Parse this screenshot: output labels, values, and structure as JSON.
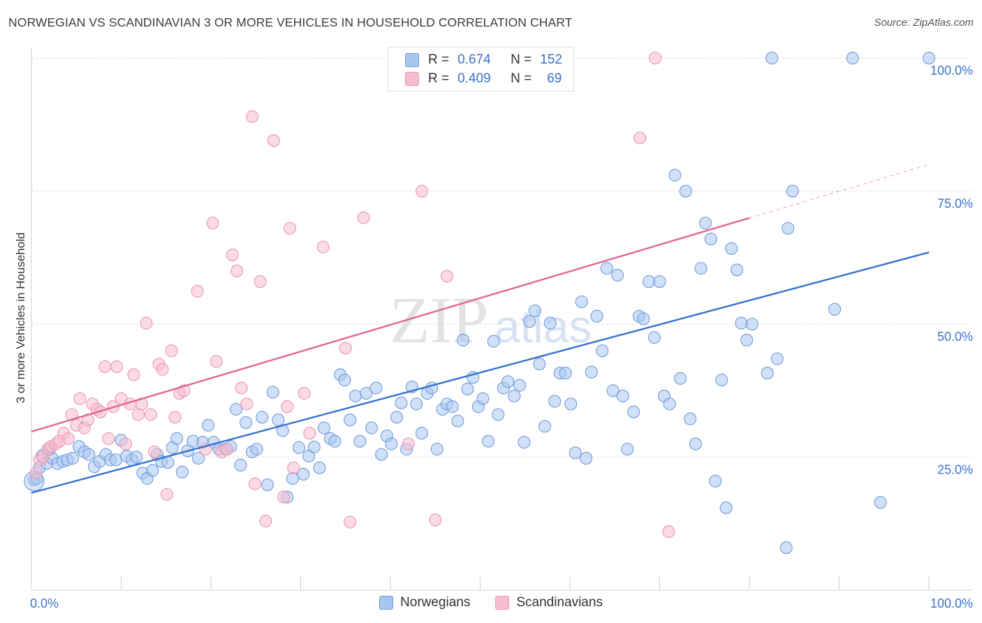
{
  "header": {
    "title": "NORWEGIAN VS SCANDINAVIAN 3 OR MORE VEHICLES IN HOUSEHOLD CORRELATION CHART",
    "source": "Source: ZipAtlas.com"
  },
  "watermark": {
    "zip": "ZIP",
    "atlas": "atlas"
  },
  "legend_box": {
    "rows": [
      {
        "r_label": "R =",
        "r_value": "0.674",
        "n_label": "N =",
        "n_value": "152"
      },
      {
        "r_label": "R =",
        "r_value": "0.409",
        "n_label": "N =",
        "n_value": "69"
      }
    ]
  },
  "colors": {
    "norwegians_fill": "#a9c6f0",
    "norwegians_stroke": "#6f9bdc",
    "norwegians_line": "#3472d0",
    "scandinavians_fill": "#f6bdd0",
    "scandinavians_stroke": "#ee95b2",
    "scandinavians_line": "#e2668f",
    "tick_label": "#3a72c9",
    "grid": "#dddddd"
  },
  "chart_data": {
    "type": "scatter",
    "title": "NORWEGIAN VS SCANDINAVIAN 3 OR MORE VEHICLES IN HOUSEHOLD CORRELATION CHART",
    "xlabel": "",
    "ylabel": "3 or more Vehicles in Household",
    "xlim": [
      0,
      100
    ],
    "ylim": [
      0,
      102
    ],
    "x_tick_labels": [
      "0.0%",
      "100.0%"
    ],
    "y_ticks": [
      {
        "value": 25,
        "label": "25.0%"
      },
      {
        "value": 50,
        "label": "50.0%"
      },
      {
        "value": 75,
        "label": "75.0%"
      },
      {
        "value": 100,
        "label": "100.0%"
      }
    ],
    "grid": true,
    "legend_position": "bottom",
    "series": [
      {
        "name": "Norwegians",
        "r": 0.674,
        "n": 152,
        "trend": {
          "x0": 0,
          "y0": 18.3,
          "x1": 100,
          "y1": 63.5,
          "dash_from": null
        },
        "points": [
          [
            0.3,
            20.8
          ],
          [
            0.6,
            21.0
          ],
          [
            0.9,
            23.0
          ],
          [
            1.2,
            25.3
          ],
          [
            1.7,
            23.8
          ],
          [
            2.3,
            24.8
          ],
          [
            2.9,
            23.8
          ],
          [
            3.5,
            24.2
          ],
          [
            4.0,
            24.5
          ],
          [
            4.6,
            24.8
          ],
          [
            5.3,
            27.0
          ],
          [
            5.9,
            26.0
          ],
          [
            6.4,
            25.5
          ],
          [
            7.0,
            23.2
          ],
          [
            7.6,
            24.2
          ],
          [
            8.3,
            25.5
          ],
          [
            8.8,
            24.5
          ],
          [
            9.4,
            24.5
          ],
          [
            10.0,
            28.2
          ],
          [
            10.6,
            25.2
          ],
          [
            11.2,
            24.5
          ],
          [
            11.7,
            25.0
          ],
          [
            12.4,
            22.0
          ],
          [
            12.9,
            21.0
          ],
          [
            13.5,
            22.5
          ],
          [
            14.0,
            25.5
          ],
          [
            14.5,
            24.2
          ],
          [
            15.2,
            24.0
          ],
          [
            15.7,
            26.8
          ],
          [
            16.2,
            28.5
          ],
          [
            16.8,
            22.2
          ],
          [
            17.4,
            26.2
          ],
          [
            18.0,
            28.0
          ],
          [
            18.6,
            24.8
          ],
          [
            19.1,
            27.8
          ],
          [
            19.7,
            31.0
          ],
          [
            20.3,
            27.8
          ],
          [
            20.9,
            26.5
          ],
          [
            21.6,
            26.5
          ],
          [
            22.2,
            27.0
          ],
          [
            22.8,
            34.0
          ],
          [
            23.3,
            23.5
          ],
          [
            23.9,
            31.5
          ],
          [
            24.6,
            26.0
          ],
          [
            25.1,
            26.5
          ],
          [
            25.7,
            32.5
          ],
          [
            26.3,
            19.8
          ],
          [
            26.9,
            37.2
          ],
          [
            27.5,
            32.0
          ],
          [
            28.0,
            30.0
          ],
          [
            28.5,
            17.5
          ],
          [
            29.1,
            21.0
          ],
          [
            29.8,
            26.8
          ],
          [
            30.3,
            21.8
          ],
          [
            30.9,
            25.2
          ],
          [
            31.5,
            26.9
          ],
          [
            32.1,
            23.0
          ],
          [
            32.6,
            30.5
          ],
          [
            33.3,
            28.5
          ],
          [
            33.8,
            28.0
          ],
          [
            34.4,
            40.5
          ],
          [
            34.9,
            39.5
          ],
          [
            35.5,
            32.0
          ],
          [
            36.1,
            36.5
          ],
          [
            36.6,
            28.0
          ],
          [
            37.3,
            37.0
          ],
          [
            37.9,
            30.5
          ],
          [
            38.4,
            38.0
          ],
          [
            39.0,
            25.5
          ],
          [
            39.6,
            29.0
          ],
          [
            40.1,
            27.5
          ],
          [
            40.7,
            32.5
          ],
          [
            41.2,
            35.2
          ],
          [
            41.8,
            26.5
          ],
          [
            42.4,
            38.2
          ],
          [
            42.9,
            35.0
          ],
          [
            43.5,
            29.5
          ],
          [
            44.1,
            37.0
          ],
          [
            44.6,
            38.0
          ],
          [
            45.2,
            26.5
          ],
          [
            45.8,
            34.0
          ],
          [
            46.3,
            35.0
          ],
          [
            46.9,
            34.5
          ],
          [
            47.5,
            31.8
          ],
          [
            48.1,
            47.0
          ],
          [
            48.6,
            37.8
          ],
          [
            49.2,
            40.0
          ],
          [
            49.8,
            34.5
          ],
          [
            50.3,
            36.0
          ],
          [
            50.9,
            28.0
          ],
          [
            51.5,
            46.8
          ],
          [
            52.0,
            33.0
          ],
          [
            52.6,
            38.0
          ],
          [
            53.1,
            39.2
          ],
          [
            53.8,
            36.5
          ],
          [
            54.4,
            38.5
          ],
          [
            54.9,
            27.8
          ],
          [
            55.5,
            50.5
          ],
          [
            56.1,
            52.5
          ],
          [
            56.6,
            42.5
          ],
          [
            57.2,
            30.8
          ],
          [
            57.8,
            50.2
          ],
          [
            58.3,
            35.5
          ],
          [
            58.9,
            40.8
          ],
          [
            59.5,
            40.8
          ],
          [
            60.1,
            35.0
          ],
          [
            60.6,
            25.8
          ],
          [
            61.3,
            54.2
          ],
          [
            61.8,
            24.8
          ],
          [
            62.4,
            41.0
          ],
          [
            63.0,
            51.5
          ],
          [
            63.6,
            45.0
          ],
          [
            64.1,
            60.5
          ],
          [
            64.8,
            37.5
          ],
          [
            65.3,
            59.2
          ],
          [
            65.9,
            36.5
          ],
          [
            66.4,
            26.5
          ],
          [
            67.1,
            33.5
          ],
          [
            67.7,
            51.5
          ],
          [
            68.2,
            51.0
          ],
          [
            68.8,
            58.0
          ],
          [
            69.4,
            47.5
          ],
          [
            70.0,
            58.0
          ],
          [
            70.5,
            36.5
          ],
          [
            71.1,
            35.0
          ],
          [
            71.7,
            78.0
          ],
          [
            72.3,
            39.8
          ],
          [
            72.9,
            75.0
          ],
          [
            73.4,
            32.2
          ],
          [
            74.0,
            27.5
          ],
          [
            74.6,
            60.5
          ],
          [
            75.1,
            69.0
          ],
          [
            75.7,
            66.0
          ],
          [
            76.2,
            20.5
          ],
          [
            76.9,
            39.5
          ],
          [
            77.4,
            15.5
          ],
          [
            78.0,
            64.2
          ],
          [
            78.6,
            60.2
          ],
          [
            79.1,
            50.2
          ],
          [
            79.7,
            47.0
          ],
          [
            80.3,
            50.0
          ],
          [
            82.0,
            40.8
          ],
          [
            83.1,
            43.5
          ],
          [
            84.1,
            8.0
          ],
          [
            84.3,
            68.0
          ],
          [
            82.5,
            100.0
          ],
          [
            84.8,
            75.0
          ],
          [
            89.5,
            52.8
          ],
          [
            91.5,
            100.0
          ],
          [
            94.6,
            16.5
          ],
          [
            100.0,
            100.0
          ],
          [
            2.0,
            26.5
          ]
        ]
      },
      {
        "name": "Scandinavians",
        "r": 0.409,
        "n": 69,
        "trend": {
          "x0": 0,
          "y0": 29.8,
          "x1": 100,
          "y1": 80.0,
          "dash_from": 80
        },
        "points": [
          [
            0.5,
            22.0
          ],
          [
            0.9,
            24.5
          ],
          [
            1.3,
            25.0
          ],
          [
            1.8,
            26.5
          ],
          [
            2.2,
            27.0
          ],
          [
            2.7,
            27.5
          ],
          [
            3.1,
            28.0
          ],
          [
            3.6,
            29.5
          ],
          [
            4.1,
            28.5
          ],
          [
            4.5,
            33.0
          ],
          [
            5.0,
            31.0
          ],
          [
            5.4,
            36.0
          ],
          [
            5.9,
            30.5
          ],
          [
            6.3,
            32.0
          ],
          [
            6.8,
            35.0
          ],
          [
            7.3,
            34.0
          ],
          [
            7.7,
            33.5
          ],
          [
            8.2,
            42.0
          ],
          [
            8.6,
            28.5
          ],
          [
            9.1,
            34.5
          ],
          [
            9.5,
            42.0
          ],
          [
            10.0,
            36.0
          ],
          [
            10.5,
            27.5
          ],
          [
            11.0,
            35.0
          ],
          [
            11.4,
            40.5
          ],
          [
            11.9,
            33.0
          ],
          [
            12.3,
            35.0
          ],
          [
            12.8,
            50.2
          ],
          [
            13.3,
            33.0
          ],
          [
            13.7,
            26.0
          ],
          [
            14.2,
            42.5
          ],
          [
            14.6,
            41.5
          ],
          [
            15.1,
            18.0
          ],
          [
            15.6,
            45.0
          ],
          [
            16.0,
            32.5
          ],
          [
            16.5,
            37.0
          ],
          [
            17.0,
            37.5
          ],
          [
            18.5,
            56.2
          ],
          [
            19.4,
            26.5
          ],
          [
            20.2,
            69.0
          ],
          [
            20.6,
            43.0
          ],
          [
            21.2,
            26.0
          ],
          [
            21.8,
            26.5
          ],
          [
            22.4,
            63.0
          ],
          [
            22.9,
            60.0
          ],
          [
            23.4,
            38.0
          ],
          [
            24.0,
            35.0
          ],
          [
            24.6,
            89.0
          ],
          [
            24.9,
            20.0
          ],
          [
            25.5,
            58.0
          ],
          [
            26.1,
            13.0
          ],
          [
            27.0,
            84.5
          ],
          [
            28.1,
            17.5
          ],
          [
            28.5,
            34.5
          ],
          [
            28.8,
            68.0
          ],
          [
            29.2,
            23.0
          ],
          [
            30.4,
            37.0
          ],
          [
            31.0,
            29.5
          ],
          [
            32.5,
            64.5
          ],
          [
            35.0,
            45.5
          ],
          [
            35.5,
            12.8
          ],
          [
            37.0,
            70.0
          ],
          [
            42.0,
            27.5
          ],
          [
            43.5,
            75.0
          ],
          [
            45.0,
            13.2
          ],
          [
            46.3,
            59.0
          ],
          [
            67.8,
            85.0
          ],
          [
            69.5,
            100.0
          ],
          [
            71.0,
            11.0
          ]
        ]
      }
    ]
  }
}
